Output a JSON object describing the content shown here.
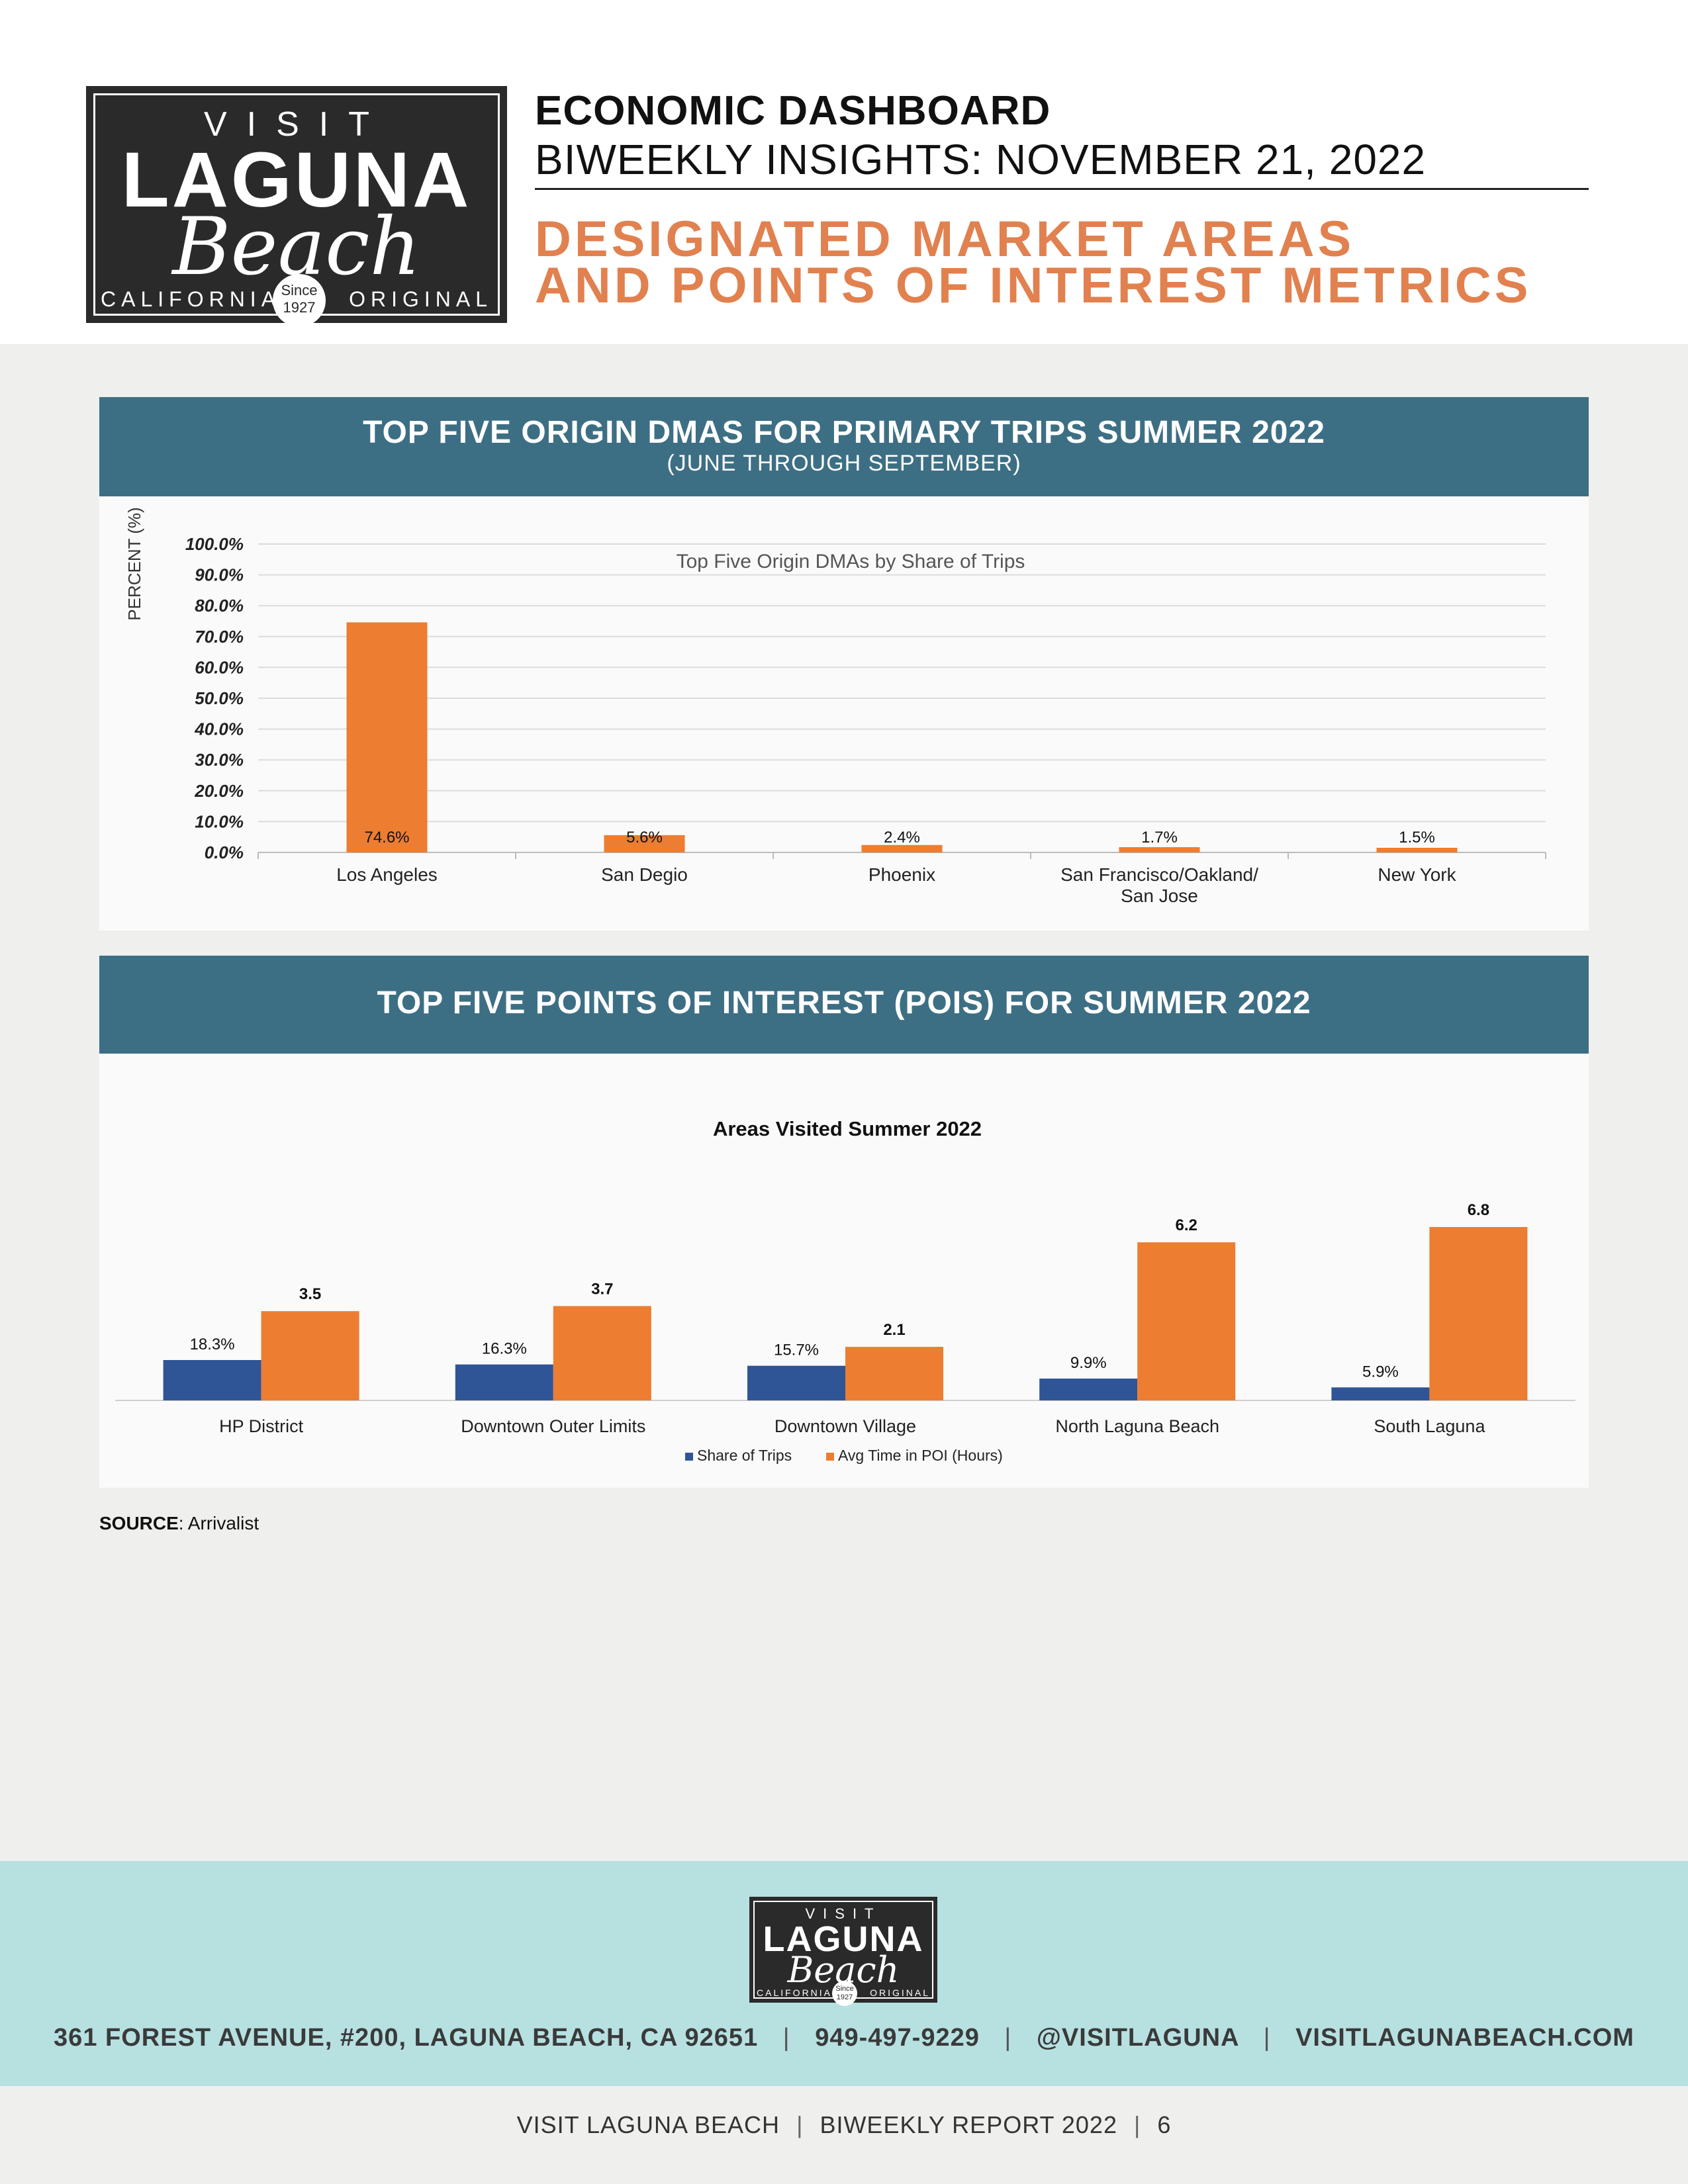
{
  "logo": {
    "visit": "VISIT",
    "laguna": "LAGUNA",
    "beach": "Beach",
    "california": "CALIFORNIA",
    "original": "ORIGINAL",
    "since": "Since",
    "year": "1927"
  },
  "header": {
    "title": "ECONOMIC DASHBOARD",
    "subtitle": "BIWEEKLY INSIGHTS: NOVEMBER 21, 2022",
    "section_line1": "DESIGNATED MARKET AREAS",
    "section_line2": "AND POINTS OF INTEREST METRICS"
  },
  "panel1": {
    "title": "TOP FIVE ORIGIN DMAS FOR PRIMARY TRIPS SUMMER 2022",
    "subtitle": "(JUNE THROUGH SEPTEMBER)"
  },
  "panel2": {
    "title": "TOP FIVE POINTS OF INTEREST (POIS) FOR SUMMER 2022"
  },
  "colors": {
    "orange": "#ed7d31",
    "blue": "#2f5597",
    "panel_head": "#3d6f84",
    "accent_orange_text": "#e1814f",
    "footer_band": "#b7e0e1"
  },
  "chart_data": [
    {
      "type": "bar",
      "title": "Top Five Origin DMAs by Share of Trips",
      "ylabel": "PERCENT (%)",
      "xlabel": "",
      "categories": [
        "Los Angeles",
        "San Degio",
        "Phoenix",
        "San Francisco/Oakland/\nSan Jose",
        "New York"
      ],
      "values": [
        74.6,
        5.6,
        2.4,
        1.7,
        1.5
      ],
      "value_labels": [
        "74.6%",
        "5.6%",
        "2.4%",
        "1.7%",
        "1.5%"
      ],
      "ylim": [
        0,
        100
      ],
      "yticks": [
        "0.0%",
        "10.0%",
        "20.0%",
        "30.0%",
        "40.0%",
        "50.0%",
        "60.0%",
        "70.0%",
        "80.0%",
        "90.0%",
        "100.0%"
      ],
      "grid": true
    },
    {
      "type": "bar",
      "title": "Areas Visited Summer 2022",
      "categories": [
        "HP District",
        "Downtown Outer Limits",
        "Downtown Village",
        "North Laguna Beach",
        "South Laguna"
      ],
      "series": [
        {
          "name": "Share of Trips",
          "values": [
            18.3,
            16.3,
            15.7,
            9.9,
            5.9
          ],
          "labels": [
            "18.3%",
            "16.3%",
            "15.7%",
            "9.9%",
            "5.9%"
          ]
        },
        {
          "name": "Avg Time in POI (Hours)",
          "values": [
            3.5,
            3.7,
            2.1,
            6.2,
            6.8
          ],
          "labels": [
            "3.5",
            "3.7",
            "2.1",
            "6.2",
            "6.8"
          ]
        }
      ],
      "legend": "bottom",
      "grid": false
    }
  ],
  "source": {
    "label": "SOURCE",
    "text": ": Arrivalist"
  },
  "footer": {
    "address": "361 FOREST AVENUE, #200, LAGUNA BEACH, CA 92651",
    "phone": "949-497-9229",
    "social": "@VISITLAGUNA",
    "website": "VISITLAGUNABEACH.COM",
    "separator": "|",
    "org": "VISIT LAGUNA BEACH",
    "report": "BIWEEKLY REPORT 2022",
    "page_number": "6"
  }
}
